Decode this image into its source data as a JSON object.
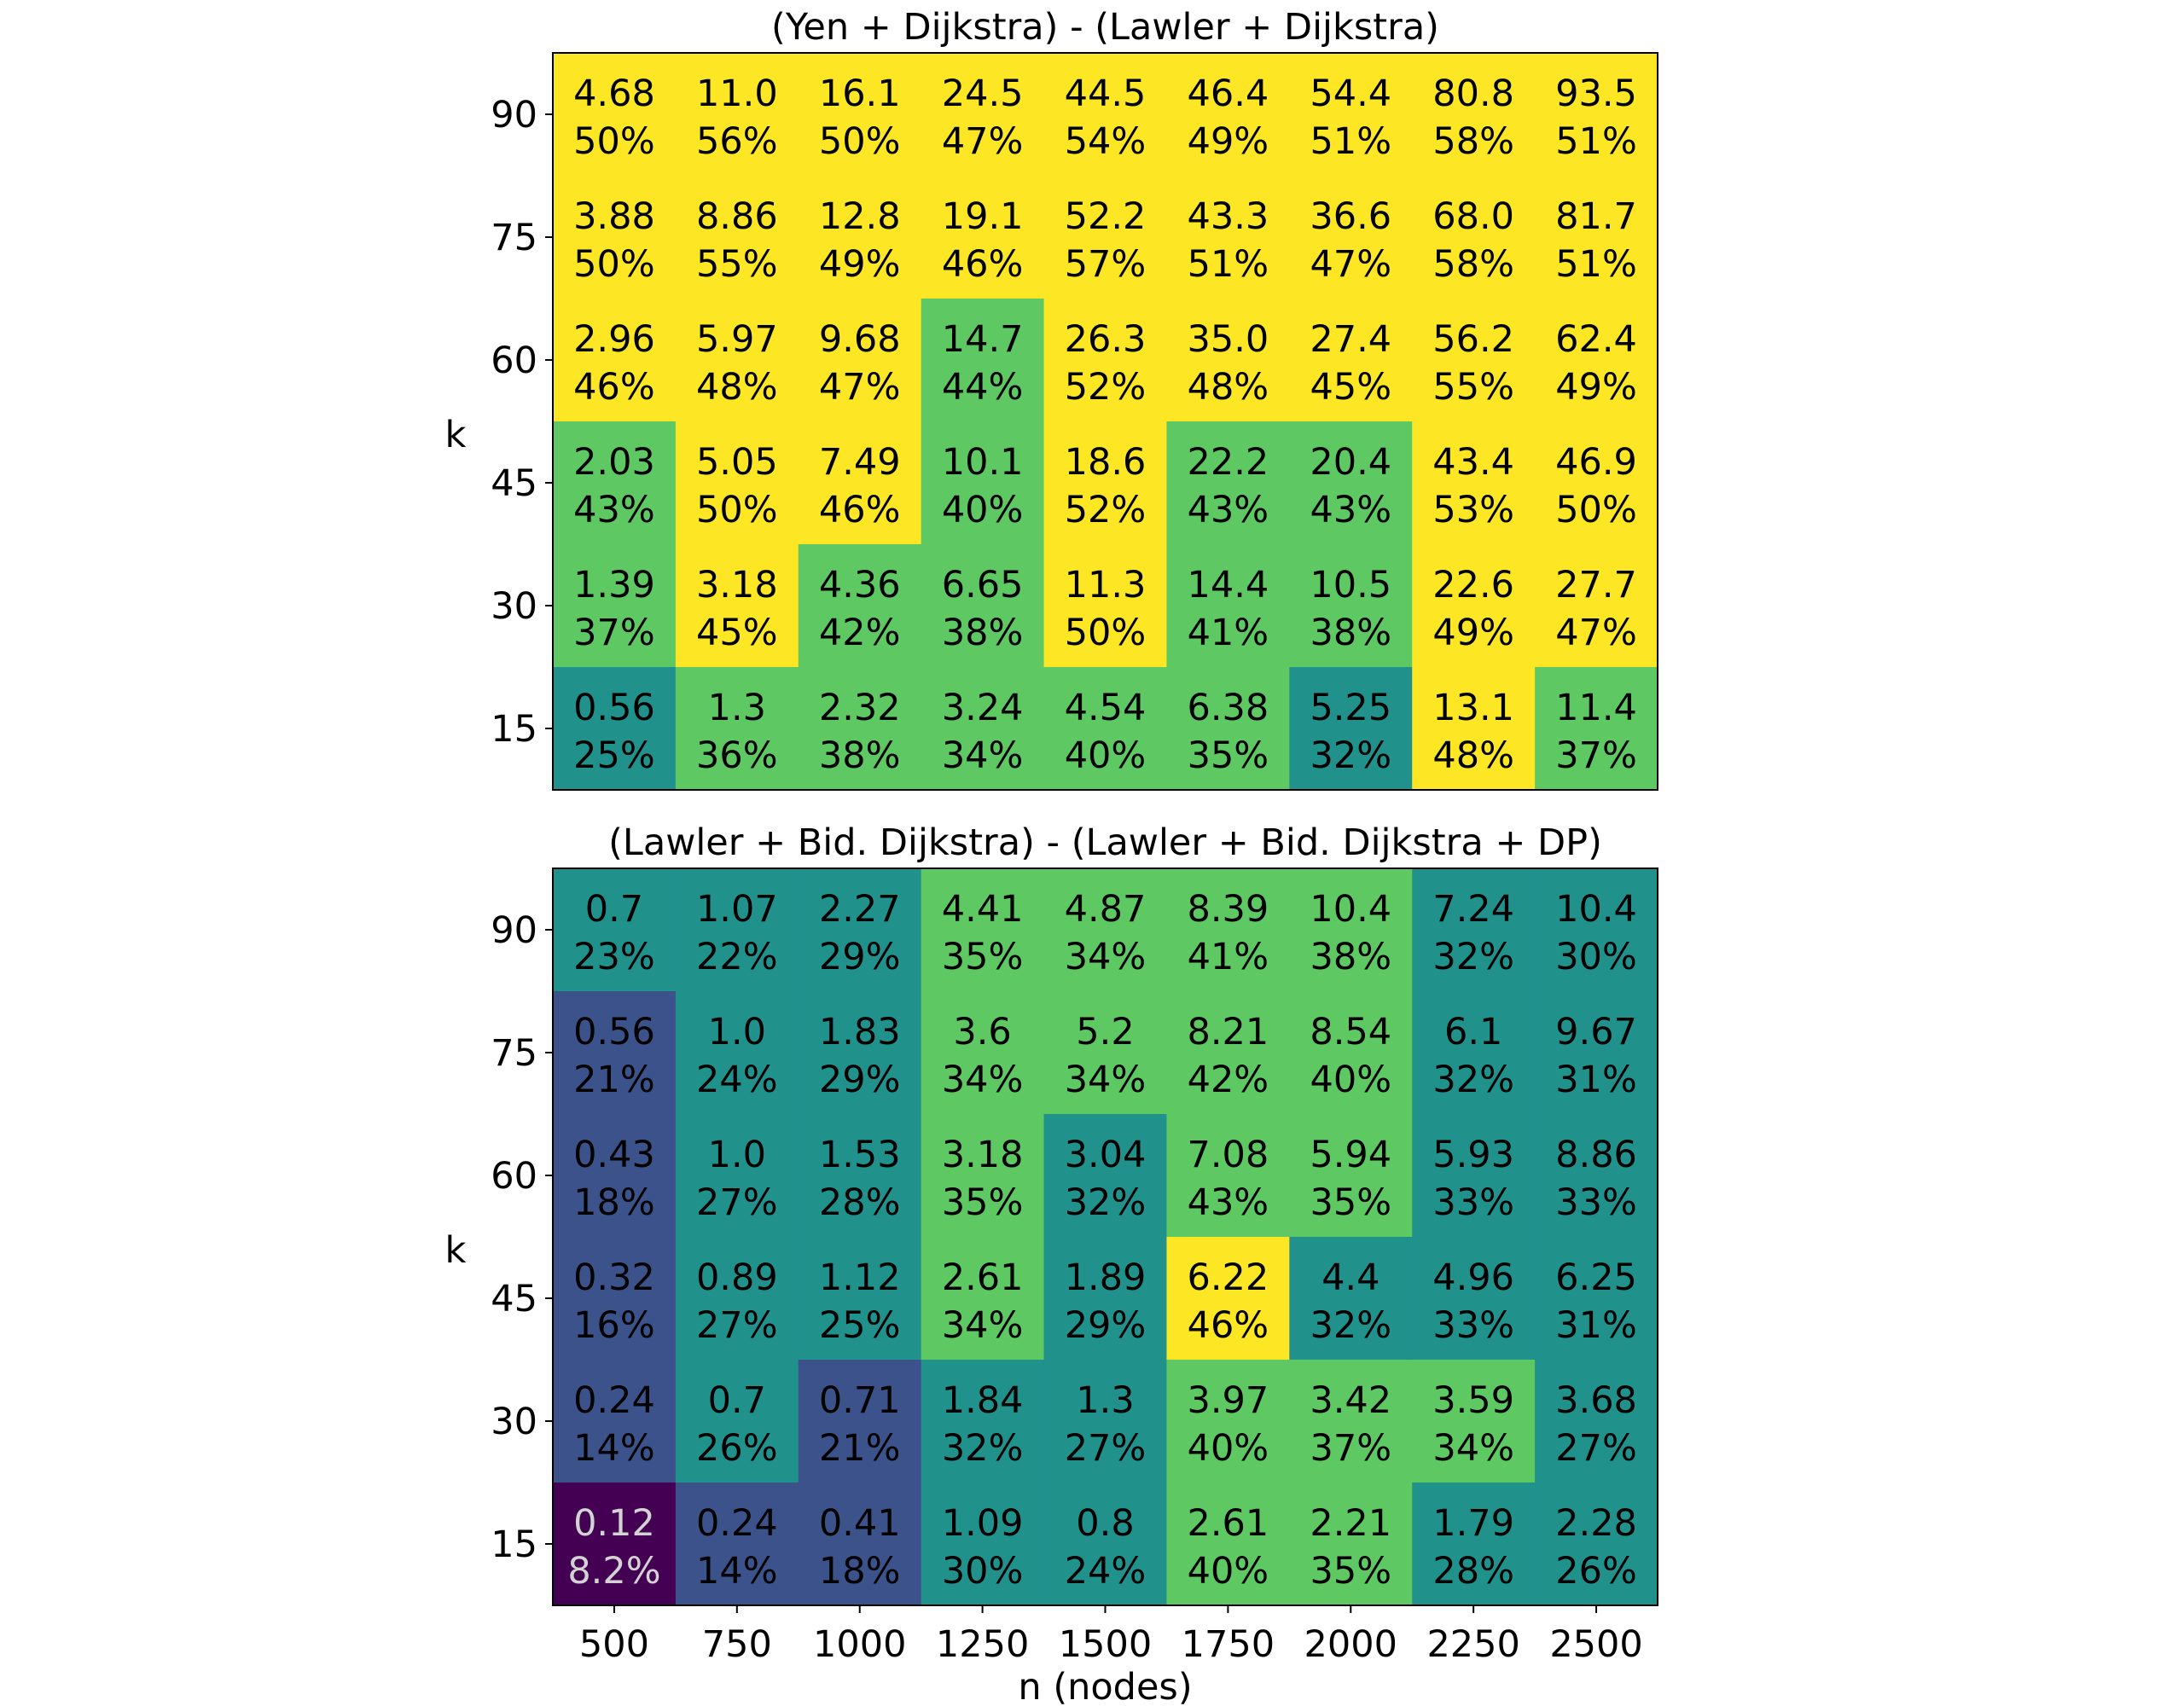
{
  "chart_data": [
    {
      "type": "heatmap",
      "title": "(Yen + Dijkstra) - (Lawler + Dijkstra)",
      "xlabel": "",
      "ylabel": "k",
      "x": [
        "500",
        "750",
        "1000",
        "1250",
        "1500",
        "1750",
        "2000",
        "2250",
        "2500"
      ],
      "y": [
        "90",
        "75",
        "60",
        "45",
        "30",
        "15"
      ],
      "values": [
        [
          "4.68",
          "11.0",
          "16.1",
          "24.5",
          "44.5",
          "46.4",
          "54.4",
          "80.8",
          "93.5"
        ],
        [
          "3.88",
          "8.86",
          "12.8",
          "19.1",
          "52.2",
          "43.3",
          "36.6",
          "68.0",
          "81.7"
        ],
        [
          "2.96",
          "5.97",
          "9.68",
          "14.7",
          "26.3",
          "35.0",
          "27.4",
          "56.2",
          "62.4"
        ],
        [
          "2.03",
          "5.05",
          "7.49",
          "10.1",
          "18.6",
          "22.2",
          "20.4",
          "43.4",
          "46.9"
        ],
        [
          "1.39",
          "3.18",
          "4.36",
          "6.65",
          "11.3",
          "14.4",
          "10.5",
          "22.6",
          "27.7"
        ],
        [
          "0.56",
          "1.3",
          "2.32",
          "3.24",
          "4.54",
          "6.38",
          "5.25",
          "13.1",
          "11.4"
        ]
      ],
      "percent": [
        [
          "50%",
          "56%",
          "50%",
          "47%",
          "54%",
          "49%",
          "51%",
          "58%",
          "51%"
        ],
        [
          "50%",
          "55%",
          "49%",
          "46%",
          "57%",
          "51%",
          "47%",
          "58%",
          "51%"
        ],
        [
          "46%",
          "48%",
          "47%",
          "44%",
          "52%",
          "48%",
          "45%",
          "55%",
          "49%"
        ],
        [
          "43%",
          "50%",
          "46%",
          "40%",
          "52%",
          "43%",
          "43%",
          "53%",
          "50%"
        ],
        [
          "37%",
          "45%",
          "42%",
          "38%",
          "50%",
          "41%",
          "38%",
          "49%",
          "47%"
        ],
        [
          "25%",
          "36%",
          "38%",
          "34%",
          "40%",
          "35%",
          "32%",
          "48%",
          "37%"
        ]
      ],
      "color_levels": [
        [
          4,
          4,
          4,
          4,
          4,
          4,
          4,
          4,
          4
        ],
        [
          4,
          4,
          4,
          4,
          4,
          4,
          4,
          4,
          4
        ],
        [
          4,
          4,
          4,
          3,
          4,
          4,
          4,
          4,
          4
        ],
        [
          3,
          4,
          4,
          3,
          4,
          3,
          3,
          4,
          4
        ],
        [
          3,
          4,
          3,
          3,
          4,
          3,
          3,
          4,
          4
        ],
        [
          2,
          3,
          3,
          3,
          3,
          3,
          2,
          4,
          3
        ]
      ],
      "show_xticklabels": false
    },
    {
      "type": "heatmap",
      "title": "(Lawler + Bid. Dijkstra) - (Lawler + Bid. Dijkstra + DP)",
      "xlabel": "n (nodes)",
      "ylabel": "k",
      "x": [
        "500",
        "750",
        "1000",
        "1250",
        "1500",
        "1750",
        "2000",
        "2250",
        "2500"
      ],
      "y": [
        "90",
        "75",
        "60",
        "45",
        "30",
        "15"
      ],
      "values": [
        [
          "0.7",
          "1.07",
          "2.27",
          "4.41",
          "4.87",
          "8.39",
          "10.4",
          "7.24",
          "10.4"
        ],
        [
          "0.56",
          "1.0",
          "1.83",
          "3.6",
          "5.2",
          "8.21",
          "8.54",
          "6.1",
          "9.67"
        ],
        [
          "0.43",
          "1.0",
          "1.53",
          "3.18",
          "3.04",
          "7.08",
          "5.94",
          "5.93",
          "8.86"
        ],
        [
          "0.32",
          "0.89",
          "1.12",
          "2.61",
          "1.89",
          "6.22",
          "4.4",
          "4.96",
          "6.25"
        ],
        [
          "0.24",
          "0.7",
          "0.71",
          "1.84",
          "1.3",
          "3.97",
          "3.42",
          "3.59",
          "3.68"
        ],
        [
          "0.12",
          "0.24",
          "0.41",
          "1.09",
          "0.8",
          "2.61",
          "2.21",
          "1.79",
          "2.28"
        ]
      ],
      "percent": [
        [
          "23%",
          "22%",
          "29%",
          "35%",
          "34%",
          "41%",
          "38%",
          "32%",
          "30%"
        ],
        [
          "21%",
          "24%",
          "29%",
          "34%",
          "34%",
          "42%",
          "40%",
          "32%",
          "31%"
        ],
        [
          "18%",
          "27%",
          "28%",
          "35%",
          "32%",
          "43%",
          "35%",
          "33%",
          "33%"
        ],
        [
          "16%",
          "27%",
          "25%",
          "34%",
          "29%",
          "46%",
          "32%",
          "33%",
          "31%"
        ],
        [
          "14%",
          "26%",
          "21%",
          "32%",
          "27%",
          "40%",
          "37%",
          "34%",
          "27%"
        ],
        [
          "8.2%",
          "14%",
          "18%",
          "30%",
          "24%",
          "40%",
          "35%",
          "28%",
          "26%"
        ]
      ],
      "color_levels": [
        [
          2,
          2,
          2,
          3,
          3,
          3,
          3,
          2,
          2
        ],
        [
          1,
          2,
          2,
          3,
          3,
          3,
          3,
          2,
          2
        ],
        [
          1,
          2,
          2,
          3,
          2,
          3,
          3,
          2,
          2
        ],
        [
          1,
          2,
          2,
          3,
          2,
          4,
          2,
          2,
          2
        ],
        [
          1,
          2,
          1,
          2,
          2,
          3,
          3,
          3,
          2
        ],
        [
          0,
          1,
          1,
          2,
          2,
          3,
          3,
          2,
          2
        ]
      ],
      "show_xticklabels": true
    }
  ],
  "palette": [
    "#440154",
    "#3b528b",
    "#21918c",
    "#5ec962",
    "#fde725"
  ],
  "light_text_color": "#d3d3d3",
  "dark_text_color": "#000000"
}
